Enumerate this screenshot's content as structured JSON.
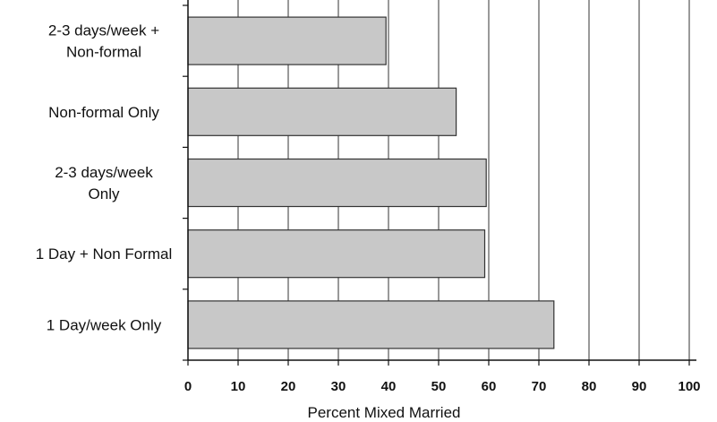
{
  "chart_data": {
    "type": "bar",
    "orientation": "horizontal",
    "categories": [
      [
        "2-3 days/week  +",
        "Non-formal"
      ],
      [
        "Non-formal Only"
      ],
      [
        "2-3 days/week",
        "Only"
      ],
      [
        "1 Day + Non Formal"
      ],
      [
        "1 Day/week Only"
      ]
    ],
    "values": [
      39.5,
      53.5,
      59.5,
      59.2,
      73
    ],
    "xlabel": "Percent Mixed Married",
    "ylabel": "",
    "xlim": [
      0,
      100
    ],
    "xticks": [
      "0",
      "10",
      "20",
      "30",
      "40",
      "50",
      "60",
      "70",
      "80",
      "90",
      "100"
    ],
    "grid": true,
    "colors": {
      "bar_fill": "#c8c8c8",
      "bar_stroke": "#333333",
      "grid": "#333333"
    }
  }
}
